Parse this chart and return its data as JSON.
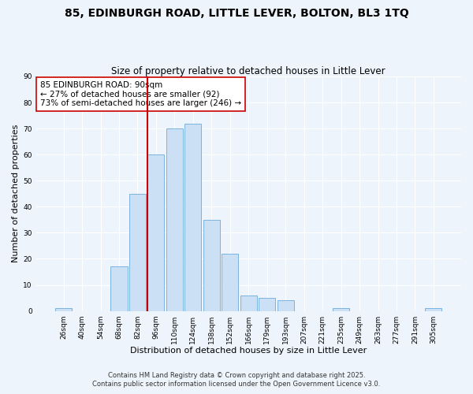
{
  "title": "85, EDINBURGH ROAD, LITTLE LEVER, BOLTON, BL3 1TQ",
  "subtitle": "Size of property relative to detached houses in Little Lever",
  "xlabel": "Distribution of detached houses by size in Little Lever",
  "ylabel": "Number of detached properties",
  "bar_color": "#cce0f5",
  "bar_edge_color": "#7ab4e0",
  "categories": [
    "26sqm",
    "40sqm",
    "54sqm",
    "68sqm",
    "82sqm",
    "96sqm",
    "110sqm",
    "124sqm",
    "138sqm",
    "152sqm",
    "166sqm",
    "179sqm",
    "193sqm",
    "207sqm",
    "221sqm",
    "235sqm",
    "249sqm",
    "263sqm",
    "277sqm",
    "291sqm",
    "305sqm"
  ],
  "values": [
    1,
    0,
    0,
    17,
    45,
    60,
    70,
    72,
    35,
    22,
    6,
    5,
    4,
    0,
    0,
    1,
    0,
    0,
    0,
    0,
    1
  ],
  "ylim": [
    0,
    90
  ],
  "yticks": [
    0,
    10,
    20,
    30,
    40,
    50,
    60,
    70,
    80,
    90
  ],
  "vline_x_index": 5,
  "vline_color": "#cc0000",
  "annotation_title": "85 EDINBURGH ROAD: 90sqm",
  "annotation_line1": "← 27% of detached houses are smaller (92)",
  "annotation_line2": "73% of semi-detached houses are larger (246) →",
  "annotation_box_color": "#ffffff",
  "annotation_box_edge": "#cc0000",
  "footer1": "Contains HM Land Registry data © Crown copyright and database right 2025.",
  "footer2": "Contains public sector information licensed under the Open Government Licence v3.0.",
  "background_color": "#eef4fb",
  "grid_color": "#ffffff",
  "title_fontsize": 10,
  "subtitle_fontsize": 8.5,
  "axis_label_fontsize": 8,
  "tick_fontsize": 6.5,
  "annotation_fontsize": 7.5,
  "footer_fontsize": 6
}
